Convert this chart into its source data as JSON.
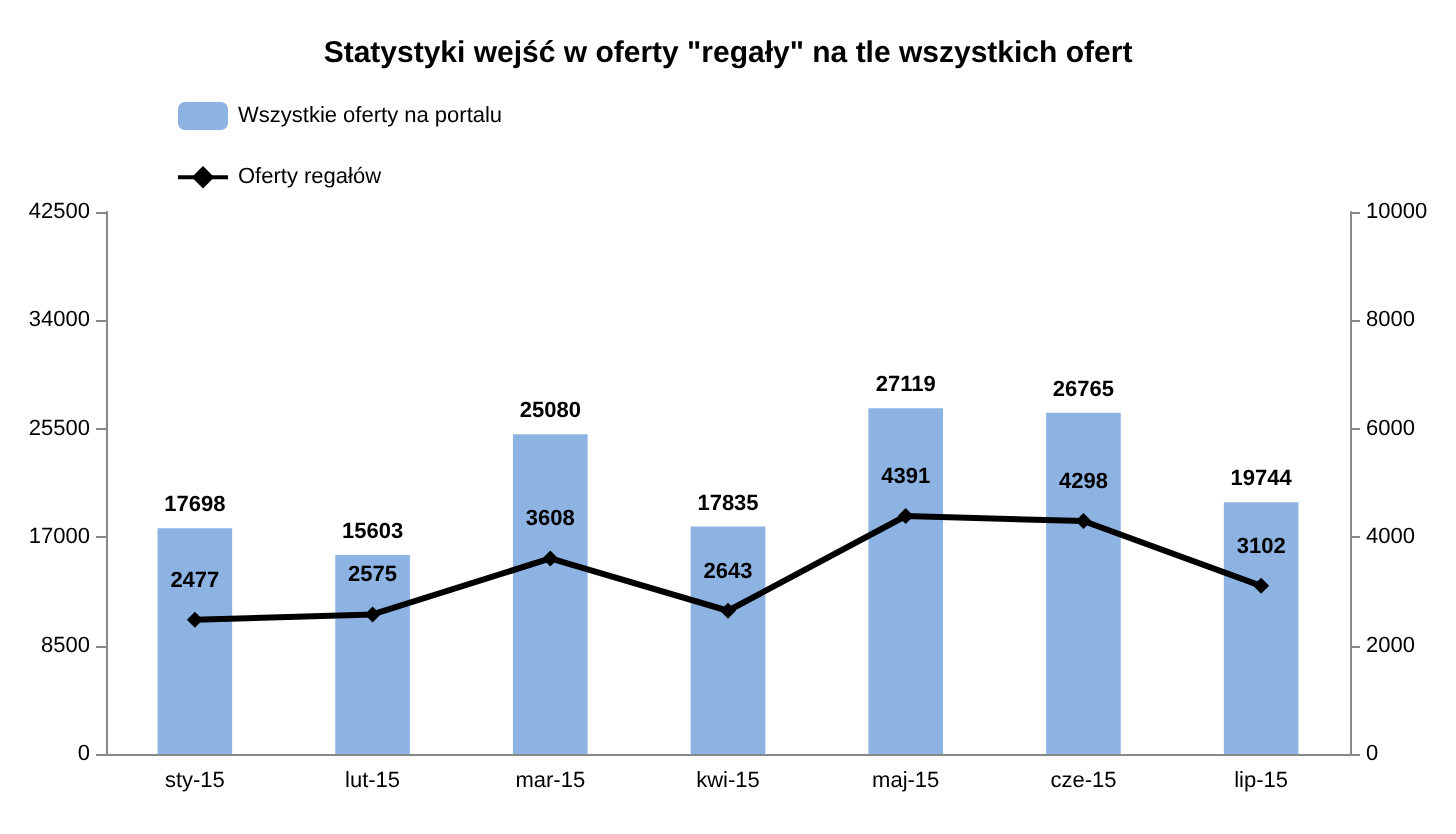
{
  "chart_data": {
    "type": "bar",
    "title": "Statystyki wejść w oferty \"regały\" na tle wszystkich ofert",
    "categories": [
      "sty-15",
      "lut-15",
      "mar-15",
      "kwi-15",
      "maj-15",
      "cze-15",
      "lip-15"
    ],
    "series": [
      {
        "name": "Wszystkie oferty na portalu",
        "color": "#8db3e2",
        "values": [
          17698,
          15603,
          25080,
          17835,
          27119,
          26765,
          19744
        ]
      },
      {
        "name": "Oferty regałów",
        "type": "line",
        "axis": "y2",
        "color": "#000000",
        "marker": "diamond",
        "values": [
          2477,
          2575,
          3608,
          2643,
          4391,
          4298,
          3102
        ]
      }
    ],
    "ylim": [
      0,
      42500
    ],
    "yticks": [
      0,
      8500,
      17000,
      25500,
      34000,
      42500
    ],
    "y2lim": [
      0,
      10000
    ],
    "y2ticks": [
      0,
      2000,
      4000,
      6000,
      8000,
      10000
    ],
    "data_labels": true,
    "legend": "top left",
    "grid": false
  }
}
